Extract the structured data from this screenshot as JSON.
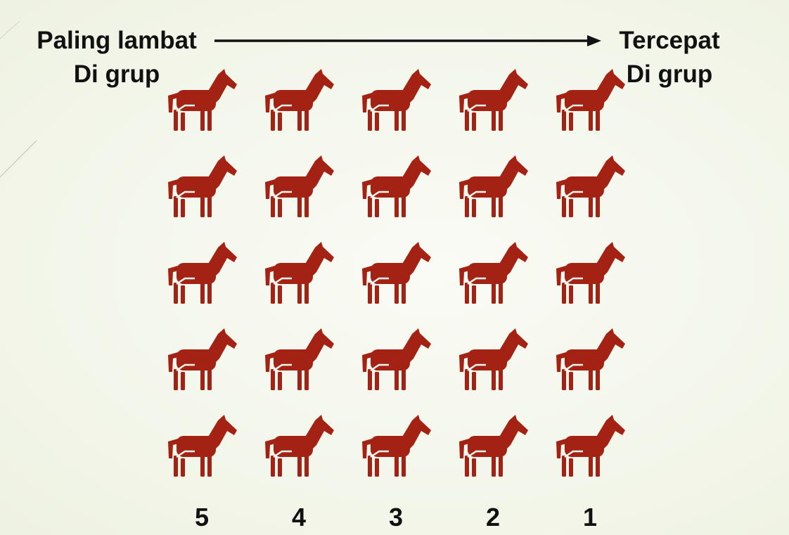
{
  "header": {
    "left_label": [
      "Paling lambat",
      "Di grup"
    ],
    "right_label": [
      "Tercepat",
      "Di grup"
    ]
  },
  "grid": {
    "rows": 5,
    "columns": [
      "5",
      "4",
      "3",
      "2",
      "1"
    ]
  },
  "colors": {
    "horse": "#a32214",
    "text": "#111111",
    "arrow": "#111111"
  },
  "icons": {
    "horse": "horse-icon",
    "arrow": "arrow-right-icon"
  }
}
